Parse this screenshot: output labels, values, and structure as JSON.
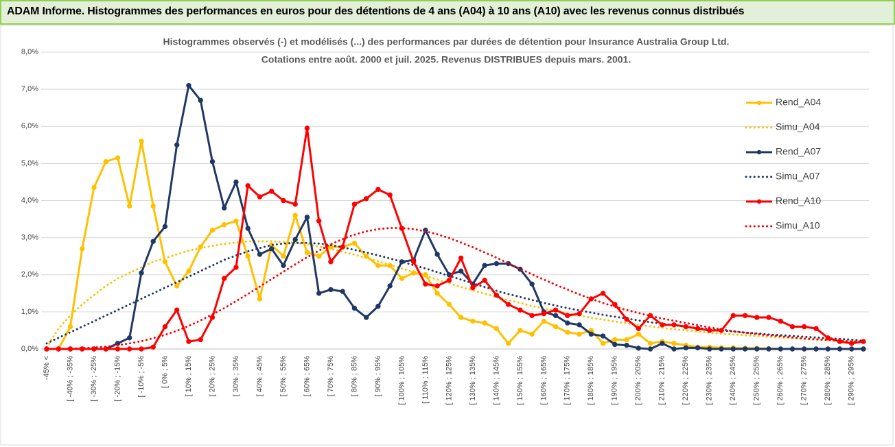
{
  "header": "ADAM Informe. Histogrammes des performances en euros pour des détentions de 4 ans (A04) à 10 ans (A10) avec les revenus connus distribués",
  "chart_data": {
    "type": "line",
    "title": "Histogrammes observés (-) et modélisés (...) des performances par durées de détention pour Insurance Australia Group Ltd.",
    "subtitle": "Cotations entre août. 2000 et juil. 2025. Revenus DISTRIBUES depuis mars. 2001.",
    "categories": [
      "-45% <",
      null,
      "[ -40% ; -35%",
      null,
      "[ -30% ; -25%",
      null,
      "[ -20% ; -15%",
      null,
      "[ -10% ; -5%",
      null,
      "[ 0% ; 5%",
      null,
      "[ 10% ; 15%",
      null,
      "[ 20% ; 25%",
      null,
      "[ 30% ; 35%",
      null,
      "[ 40% ; 45%",
      null,
      "[ 50% ; 55%",
      null,
      "[ 60% ; 65%",
      null,
      "[ 70% ; 75%",
      null,
      "[ 80% ; 85%",
      null,
      "[ 90% ; 95%",
      null,
      "[ 100% ; 105%",
      null,
      "[ 110% ; 115%",
      null,
      "[ 120% ; 125%",
      null,
      "[ 130% ; 135%",
      null,
      "[ 140% ; 145%",
      null,
      "[ 150% ; 155%",
      null,
      "[ 160% ; 165%",
      null,
      "[ 170% ; 175%",
      null,
      "[ 180% ; 185%",
      null,
      "[ 190% ; 195%",
      null,
      "[ 200% ; 205%",
      null,
      "[ 210% ; 215%",
      null,
      "[ 220% ; 225%",
      null,
      "[ 230% ; 235%",
      null,
      "[ 240% ; 245%",
      null,
      "[ 250% ; 255%",
      null,
      "[ 260% ; 265%",
      null,
      "[ 270% ; 275%",
      null,
      "[ 280% ; 285%",
      null,
      "[ 290% ; 295%",
      null
    ],
    "series": [
      {
        "name": "Rend_A04",
        "color": "#ffc000",
        "style": "solid",
        "markers": true,
        "values": [
          0,
          0,
          0.6,
          2.7,
          4.35,
          5.05,
          5.15,
          3.85,
          5.6,
          3.85,
          2.35,
          1.7,
          2.1,
          2.75,
          3.2,
          3.35,
          3.45,
          2.5,
          1.35,
          2.8,
          2.5,
          3.6,
          2.6,
          2.5,
          2.75,
          2.75,
          2.85,
          2.5,
          2.25,
          2.25,
          1.9,
          2.05,
          2.0,
          1.5,
          1.2,
          0.85,
          0.75,
          0.7,
          0.55,
          0.15,
          0.5,
          0.4,
          0.75,
          0.6,
          0.45,
          0.4,
          0.5,
          0.15,
          0.25,
          0.25,
          0.4,
          0.15,
          0.2,
          0.15,
          0.1,
          0.05,
          0.05,
          0.03,
          0.03,
          0.02,
          0.02,
          0.01,
          0,
          0,
          0,
          0,
          0,
          0,
          0,
          0
        ]
      },
      {
        "name": "Simu_A04",
        "color": "#ffc000",
        "style": "dotted",
        "markers": false,
        "values": [
          0.05,
          0.55,
          0.9,
          1.2,
          1.45,
          1.7,
          1.9,
          2.05,
          2.2,
          2.35,
          2.45,
          2.55,
          2.65,
          2.72,
          2.78,
          2.83,
          2.87,
          2.9,
          2.9,
          2.9,
          2.88,
          2.86,
          2.82,
          2.76,
          2.7,
          2.62,
          2.54,
          2.45,
          2.36,
          2.27,
          2.17,
          2.07,
          1.97,
          1.87,
          1.77,
          1.67,
          1.58,
          1.49,
          1.4,
          1.32,
          1.24,
          1.16,
          1.09,
          1.02,
          0.96,
          0.9,
          0.84,
          0.79,
          0.74,
          0.69,
          0.65,
          0.61,
          0.57,
          0.53,
          0.5,
          0.47,
          0.44,
          0.41,
          0.39,
          0.37,
          0.35,
          0.33,
          0.31,
          0.29,
          0.27,
          0.25,
          0.24,
          0.22,
          0.21,
          0.2
        ]
      },
      {
        "name": "Rend_A07",
        "color": "#1f3864",
        "style": "solid",
        "markers": true,
        "values": [
          0,
          0,
          0,
          0,
          0,
          0,
          0.15,
          0.3,
          2.05,
          2.9,
          3.3,
          5.5,
          7.1,
          6.7,
          5.05,
          3.8,
          4.5,
          3.25,
          2.55,
          2.7,
          2.25,
          2.95,
          3.55,
          1.5,
          1.6,
          1.55,
          1.1,
          0.85,
          1.15,
          1.7,
          2.35,
          2.4,
          3.2,
          2.55,
          2.0,
          2.1,
          1.75,
          2.25,
          2.3,
          2.3,
          2.15,
          1.75,
          1.0,
          0.9,
          0.7,
          0.65,
          0.4,
          0.35,
          0.12,
          0.1,
          0.02,
          0,
          0.15,
          0,
          0.03,
          0.03,
          0,
          0,
          0,
          0,
          0,
          0,
          0,
          0,
          0,
          0,
          0,
          0,
          0,
          0
        ]
      },
      {
        "name": "Simu_A07",
        "color": "#1f3864",
        "style": "dotted",
        "markers": false,
        "values": [
          0.15,
          0.3,
          0.45,
          0.6,
          0.75,
          0.9,
          1.05,
          1.2,
          1.35,
          1.5,
          1.65,
          1.8,
          1.95,
          2.1,
          2.25,
          2.4,
          2.52,
          2.63,
          2.72,
          2.8,
          2.84,
          2.86,
          2.86,
          2.84,
          2.8,
          2.74,
          2.67,
          2.6,
          2.52,
          2.44,
          2.35,
          2.26,
          2.17,
          2.07,
          1.97,
          1.87,
          1.77,
          1.67,
          1.57,
          1.48,
          1.4,
          1.32,
          1.24,
          1.17,
          1.1,
          1.04,
          0.98,
          0.92,
          0.87,
          0.82,
          0.77,
          0.72,
          0.68,
          0.64,
          0.6,
          0.56,
          0.53,
          0.5,
          0.47,
          0.44,
          0.42,
          0.39,
          0.37,
          0.35,
          0.33,
          0.31,
          0.29,
          0.27,
          0.25,
          0.22
        ]
      },
      {
        "name": "Rend_A10",
        "color": "#ff0000",
        "style": "solid",
        "markers": true,
        "values": [
          0,
          0,
          0,
          0,
          0,
          0,
          0,
          0,
          0,
          0.05,
          0.6,
          1.05,
          0.2,
          0.25,
          0.85,
          1.9,
          2.2,
          4.4,
          4.1,
          4.25,
          4.0,
          3.9,
          5.95,
          3.45,
          2.35,
          2.75,
          3.9,
          4.05,
          4.3,
          4.15,
          3.25,
          2.35,
          1.75,
          1.7,
          1.85,
          2.45,
          1.65,
          1.85,
          1.45,
          1.2,
          1.05,
          0.9,
          0.95,
          1.05,
          0.9,
          0.95,
          1.35,
          1.5,
          1.2,
          0.8,
          0.55,
          0.9,
          0.65,
          0.65,
          0.6,
          0.55,
          0.5,
          0.5,
          0.9,
          0.9,
          0.85,
          0.85,
          0.75,
          0.6,
          0.6,
          0.55,
          0.3,
          0.2,
          0.15,
          0.2
        ]
      },
      {
        "name": "Simu_A10",
        "color": "#ff0000",
        "style": "dotted",
        "markers": false,
        "values": [
          0,
          0,
          0.01,
          0.02,
          0.04,
          0.06,
          0.1,
          0.15,
          0.21,
          0.29,
          0.38,
          0.49,
          0.62,
          0.77,
          0.93,
          1.1,
          1.29,
          1.48,
          1.68,
          1.88,
          2.08,
          2.28,
          2.47,
          2.65,
          2.82,
          2.96,
          3.08,
          3.17,
          3.23,
          3.26,
          3.26,
          3.23,
          3.17,
          3.09,
          2.99,
          2.87,
          2.74,
          2.6,
          2.46,
          2.31,
          2.16,
          2.01,
          1.87,
          1.73,
          1.6,
          1.47,
          1.35,
          1.24,
          1.14,
          1.05,
          0.97,
          0.89,
          0.82,
          0.76,
          0.7,
          0.64,
          0.58,
          0.53,
          0.48,
          0.44,
          0.4,
          0.37,
          0.34,
          0.31,
          0.28,
          0.26,
          0.24,
          0.22,
          0.2,
          0.19
        ]
      }
    ],
    "ylim": [
      0,
      8
    ],
    "yticks": [
      {
        "value": 0,
        "label": "0,0%"
      },
      {
        "value": 1,
        "label": "1,0%"
      },
      {
        "value": 2,
        "label": "2,0%"
      },
      {
        "value": 3,
        "label": "3,0%"
      },
      {
        "value": 4,
        "label": "4,0%"
      },
      {
        "value": 5,
        "label": "5,0%"
      },
      {
        "value": 6,
        "label": "6,0%"
      },
      {
        "value": 7,
        "label": "7,0%"
      },
      {
        "value": 8,
        "label": "8,0%"
      }
    ],
    "grid": true,
    "legend": "right"
  }
}
